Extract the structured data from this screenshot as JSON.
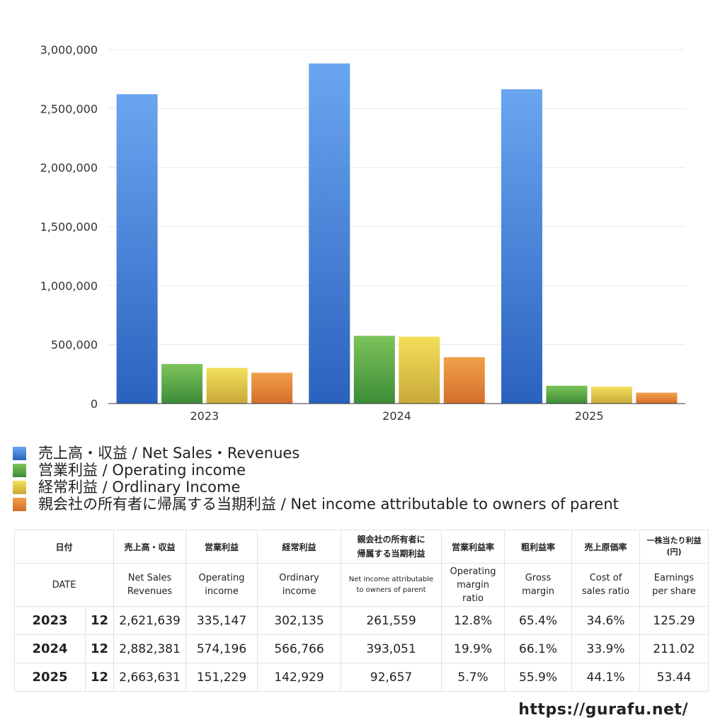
{
  "chart_data": {
    "type": "bar",
    "categories": [
      "2023",
      "2024",
      "2025"
    ],
    "ylim": [
      0,
      3000000
    ],
    "yticks": [
      0,
      500000,
      1000000,
      1500000,
      2000000,
      2500000,
      3000000
    ],
    "ytick_labels": [
      "0",
      "500,000",
      "1,000,000",
      "1,500,000",
      "2,000,000",
      "2,500,000",
      "3,000,000"
    ],
    "grid": true,
    "legend_position": "bottom",
    "series": [
      {
        "name": "売上高・収益 / Net Sales・Revenues",
        "values": [
          2621639,
          2882381,
          2663631
        ],
        "color_top": "#6aa6f0",
        "color_bottom": "#2b62bf"
      },
      {
        "name": "営業利益 / Operating income",
        "values": [
          335147,
          574196,
          151229
        ],
        "color_top": "#7dc35a",
        "color_bottom": "#3c8c38"
      },
      {
        "name": "経常利益 / Ordlinary Income",
        "values": [
          302135,
          566766,
          142929
        ],
        "color_top": "#f3df5a",
        "color_bottom": "#c9a93a"
      },
      {
        "name": "親会社の所有者に帰属する当期利益 / Net income attributable to owners of parent",
        "values": [
          261559,
          393051,
          92657
        ],
        "color_top": "#f0a04a",
        "color_bottom": "#d46e2a"
      }
    ]
  },
  "table": {
    "header_jp": {
      "date": "日付",
      "sales": "売上高・収益",
      "operating": "営業利益",
      "ordinary": "経常利益",
      "net_line1": "親会社の所有者に",
      "net_line2": "帰属する当期利益",
      "op_margin": "営業利益率",
      "gross": "粗利益率",
      "cost": "売上原価率",
      "eps_line1": "一株当たり利益",
      "eps_line2": "(円)"
    },
    "header_en": {
      "date": "DATE",
      "sales_1": "Net Sales",
      "sales_2": "Revenues",
      "operating_1": "Operating",
      "operating_2": "income",
      "ordinary_1": "Ordinary",
      "ordinary_2": "income",
      "net_1": "Net income attributable",
      "net_2": "to owners of parent",
      "op_margin_1": "Operating",
      "op_margin_2": "margin",
      "op_margin_3": "ratio",
      "gross_1": "Gross",
      "gross_2": "margin",
      "cost_1": "Cost of",
      "cost_2": "sales ratio",
      "eps_1": "Earnings",
      "eps_2": "per share"
    },
    "rows": [
      {
        "year": "2023",
        "month": "12",
        "sales": "2,621,639",
        "operating": "335,147",
        "ordinary": "302,135",
        "net": "261,559",
        "op_margin": "12.8%",
        "gross": "65.4%",
        "cost": "34.6%",
        "eps": "125.29"
      },
      {
        "year": "2024",
        "month": "12",
        "sales": "2,882,381",
        "operating": "574,196",
        "ordinary": "566,766",
        "net": "393,051",
        "op_margin": "19.9%",
        "gross": "66.1%",
        "cost": "33.9%",
        "eps": "211.02"
      },
      {
        "year": "2025",
        "month": "12",
        "sales": "2,663,631",
        "operating": "151,229",
        "ordinary": "142,929",
        "net": "92,657",
        "op_margin": "5.7%",
        "gross": "55.9%",
        "cost": "44.1%",
        "eps": "53.44"
      }
    ]
  },
  "footer": {
    "url": "https://gurafu.net/"
  }
}
